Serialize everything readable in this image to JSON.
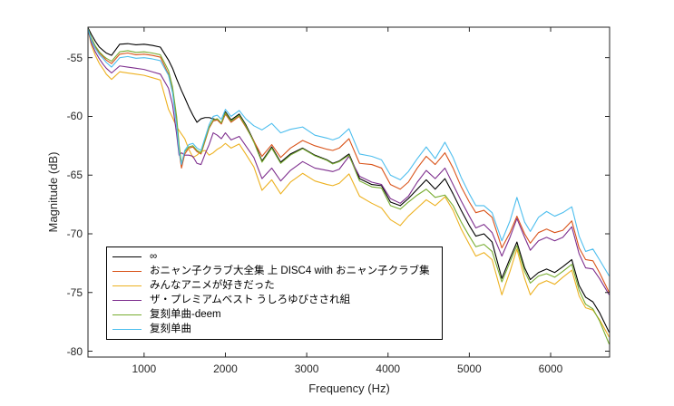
{
  "figure": {
    "background": "#ffffff",
    "axis_color": "#262626"
  },
  "legend": {
    "position": "southwest-inside",
    "border_color": "#000000"
  },
  "chart_data": {
    "type": "line",
    "title": "",
    "xlabel": "Frequency (Hz)",
    "ylabel": "Magnitude (dB)",
    "xlim": [
      310,
      6725
    ],
    "ylim": [
      -80.5,
      -52.4
    ],
    "x_ticks": [
      1000,
      2000,
      3000,
      4000,
      5000,
      6000
    ],
    "y_ticks": [
      -55,
      -60,
      -65,
      -70,
      -75,
      -80
    ],
    "grid": false,
    "box": true,
    "x": [
      300,
      350,
      400,
      450,
      500,
      535,
      600,
      700,
      800,
      900,
      1000,
      1100,
      1200,
      1300,
      1350,
      1400,
      1430,
      1460,
      1500,
      1550,
      1600,
      1650,
      1700,
      1750,
      1800,
      1850,
      1900,
      1950,
      2000,
      2070,
      2170,
      2250,
      2350,
      2450,
      2570,
      2680,
      2800,
      2950,
      3100,
      3250,
      3320,
      3400,
      3520,
      3650,
      3800,
      3920,
      4030,
      4150,
      4250,
      4360,
      4470,
      4580,
      4700,
      4800,
      4900,
      5000,
      5080,
      5180,
      5280,
      5400,
      5500,
      5585,
      5680,
      5750,
      5850,
      5950,
      6050,
      6150,
      6260,
      6350,
      6430,
      6520,
      6600,
      6720
    ],
    "series": [
      {
        "name": "∞",
        "color": "#000000",
        "values": [
          -52.3,
          -53.0,
          -53.6,
          -54.1,
          -54.4,
          -54.6,
          -54.8,
          -53.85,
          -53.8,
          -53.9,
          -53.85,
          -53.95,
          -54.1,
          -55.2,
          -55.9,
          -56.8,
          -57.3,
          -57.8,
          -58.4,
          -59.2,
          -59.9,
          -60.5,
          -60.2,
          -60.1,
          -60.1,
          -60.2,
          -60.3,
          -60.6,
          -59.6,
          -60.3,
          -59.8,
          -60.7,
          -62.1,
          -63.8,
          -62.6,
          -63.9,
          -63.2,
          -62.7,
          -63.3,
          -63.7,
          -64.0,
          -63.8,
          -63.2,
          -65.3,
          -65.8,
          -65.9,
          -67.3,
          -67.6,
          -67.0,
          -66.2,
          -65.4,
          -66.2,
          -65.3,
          -66.6,
          -68.0,
          -69.3,
          -70.2,
          -70.0,
          -70.7,
          -73.8,
          -72.1,
          -70.7,
          -72.9,
          -73.9,
          -73.3,
          -73.0,
          -73.3,
          -72.8,
          -72.2,
          -74.4,
          -75.4,
          -75.8,
          -76.7,
          -78.4
        ]
      },
      {
        "name": "おニャン子クラブ大全集 上 DISC4 with おニャン子クラブ集",
        "color": "#D95319",
        "values": [
          -52.3,
          -53.4,
          -54.1,
          -54.6,
          -54.95,
          -55.2,
          -55.5,
          -54.7,
          -54.6,
          -54.75,
          -54.7,
          -54.8,
          -54.95,
          -56.4,
          -57.8,
          -60.5,
          -63.0,
          -64.4,
          -63.2,
          -62.7,
          -62.6,
          -63.0,
          -63.2,
          -62.1,
          -61.0,
          -60.4,
          -60.3,
          -60.65,
          -59.8,
          -60.5,
          -60.0,
          -60.9,
          -62.1,
          -63.4,
          -62.4,
          -63.5,
          -62.7,
          -62.05,
          -62.5,
          -62.8,
          -62.9,
          -62.7,
          -61.9,
          -64.0,
          -64.1,
          -64.4,
          -65.8,
          -66.2,
          -65.6,
          -64.4,
          -63.4,
          -64.1,
          -63.1,
          -64.4,
          -66.0,
          -67.3,
          -68.2,
          -68.0,
          -68.6,
          -71.2,
          -69.9,
          -68.5,
          -70.0,
          -70.8,
          -69.9,
          -69.6,
          -69.9,
          -69.7,
          -68.9,
          -71.2,
          -72.2,
          -72.3,
          -73.3,
          -75.0
        ]
      },
      {
        "name": "みんなアニメが好きだった",
        "color": "#EDB120",
        "values": [
          -52.3,
          -53.9,
          -54.8,
          -55.5,
          -56.0,
          -56.4,
          -56.85,
          -56.2,
          -56.3,
          -56.4,
          -56.5,
          -56.7,
          -56.9,
          -59.4,
          -60.1,
          -60.9,
          -61.2,
          -61.5,
          -61.9,
          -62.8,
          -63.5,
          -63.3,
          -63.0,
          -62.9,
          -63.3,
          -63.1,
          -62.8,
          -62.6,
          -62.3,
          -62.7,
          -62.35,
          -63.2,
          -64.3,
          -66.3,
          -65.4,
          -66.6,
          -65.6,
          -64.85,
          -65.5,
          -65.8,
          -65.9,
          -65.7,
          -64.9,
          -66.8,
          -67.4,
          -67.8,
          -68.8,
          -69.3,
          -68.5,
          -67.8,
          -67.1,
          -67.6,
          -66.85,
          -68.0,
          -69.6,
          -70.9,
          -71.9,
          -71.6,
          -72.2,
          -75.2,
          -73.2,
          -71.3,
          -73.8,
          -75.2,
          -74.3,
          -74.0,
          -74.3,
          -73.7,
          -73.1,
          -75.3,
          -76.3,
          -76.5,
          -77.3,
          -78.8
        ]
      },
      {
        "name": "ザ・プレミアムベスト うしろゆびさされ組",
        "color": "#7E2F8E",
        "values": [
          -52.3,
          -53.7,
          -54.5,
          -55.1,
          -55.6,
          -55.9,
          -56.3,
          -55.7,
          -55.8,
          -55.9,
          -56.0,
          -56.2,
          -56.4,
          -57.6,
          -59.0,
          -61.5,
          -63.3,
          -63.1,
          -63.3,
          -63.3,
          -63.4,
          -64.0,
          -64.1,
          -63.2,
          -62.4,
          -61.4,
          -61.6,
          -61.9,
          -61.4,
          -62.0,
          -61.7,
          -62.5,
          -63.5,
          -65.3,
          -64.4,
          -65.5,
          -64.6,
          -63.85,
          -64.4,
          -64.6,
          -64.7,
          -64.5,
          -63.4,
          -65.1,
          -65.6,
          -65.8,
          -67.0,
          -67.4,
          -66.8,
          -65.6,
          -64.6,
          -65.3,
          -64.4,
          -65.8,
          -67.2,
          -68.5,
          -69.5,
          -69.2,
          -69.9,
          -71.9,
          -70.3,
          -68.7,
          -70.3,
          -71.4,
          -70.6,
          -70.3,
          -70.6,
          -70.3,
          -69.4,
          -71.7,
          -72.9,
          -73.0,
          -73.8,
          -75.2
        ]
      },
      {
        "name": "复刻单曲-deem",
        "color": "#77AC30",
        "values": [
          -52.3,
          -53.3,
          -54.0,
          -54.5,
          -54.85,
          -55.05,
          -55.3,
          -54.5,
          -54.4,
          -54.55,
          -54.5,
          -54.6,
          -54.75,
          -56.1,
          -57.5,
          -60.0,
          -62.4,
          -64.0,
          -63.0,
          -62.6,
          -62.5,
          -62.9,
          -63.1,
          -62.0,
          -60.9,
          -60.3,
          -60.2,
          -60.55,
          -59.7,
          -60.4,
          -59.9,
          -60.8,
          -62.2,
          -63.9,
          -62.7,
          -64.0,
          -63.3,
          -62.75,
          -63.35,
          -63.75,
          -64.05,
          -63.85,
          -63.3,
          -65.5,
          -66.0,
          -66.1,
          -67.6,
          -67.9,
          -67.3,
          -66.7,
          -66.2,
          -66.9,
          -66.7,
          -67.6,
          -69.0,
          -70.2,
          -71.1,
          -70.9,
          -71.5,
          -74.1,
          -72.4,
          -71.0,
          -73.2,
          -74.2,
          -73.6,
          -73.4,
          -73.7,
          -73.2,
          -72.6,
          -74.8,
          -76.0,
          -76.4,
          -77.4,
          -79.4
        ]
      },
      {
        "name": "复刻单曲",
        "color": "#4DBEEE",
        "values": [
          -52.3,
          -53.5,
          -54.2,
          -54.75,
          -55.1,
          -55.4,
          -55.8,
          -55.0,
          -54.9,
          -55.05,
          -55.0,
          -55.1,
          -55.25,
          -56.5,
          -58.0,
          -60.8,
          -63.0,
          -64.1,
          -62.9,
          -62.4,
          -62.3,
          -62.7,
          -62.9,
          -61.8,
          -60.7,
          -60.0,
          -59.9,
          -60.25,
          -59.4,
          -60.0,
          -59.5,
          -60.2,
          -60.8,
          -61.15,
          -60.6,
          -61.4,
          -61.1,
          -60.9,
          -61.6,
          -61.85,
          -62.0,
          -61.8,
          -61.05,
          -63.2,
          -63.4,
          -63.7,
          -65.0,
          -65.4,
          -64.7,
          -63.6,
          -62.6,
          -63.6,
          -62.2,
          -63.5,
          -65.2,
          -66.6,
          -67.6,
          -67.6,
          -68.2,
          -70.6,
          -68.9,
          -66.9,
          -69.0,
          -69.8,
          -68.6,
          -68.1,
          -68.5,
          -68.2,
          -67.7,
          -70.2,
          -71.5,
          -71.3,
          -72.2,
          -73.6
        ]
      }
    ]
  }
}
